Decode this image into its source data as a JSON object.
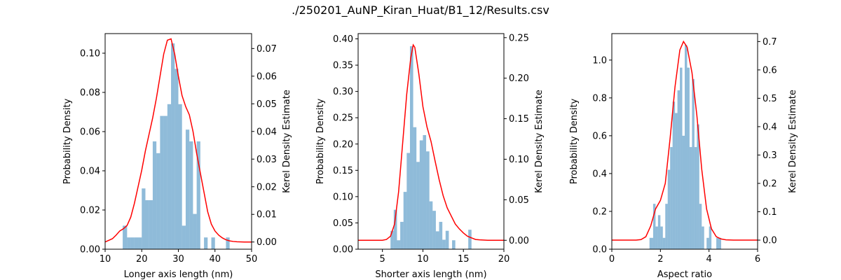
{
  "figure": {
    "title": "./250201_AuNP_Kiran_Huat/B1_12/Results.csv",
    "colors": {
      "hist": "#1f77b4",
      "kde": "#ff0000",
      "axes": "#000000"
    }
  },
  "chart_data": [
    {
      "type": "histogram+line",
      "xlabel": "Longer axis length (nm)",
      "ylabel": "Probability Density",
      "ylabel2": "Kerel Density Estimate",
      "xlim": [
        10,
        50
      ],
      "ylim": [
        0,
        0.11
      ],
      "y2lim": [
        -0.0026,
        0.0754
      ],
      "xticks": [
        10,
        20,
        30,
        40,
        50
      ],
      "yticks": [
        0.0,
        0.02,
        0.04,
        0.06,
        0.08,
        0.1
      ],
      "y2ticks": [
        0.0,
        0.01,
        0.02,
        0.03,
        0.04,
        0.05,
        0.06,
        0.07
      ],
      "ytick_labels": [
        "0.00",
        "0.02",
        "0.04",
        "0.06",
        "0.08",
        "0.10"
      ],
      "y2tick_labels": [
        "0.00",
        "0.01",
        "0.02",
        "0.03",
        "0.04",
        "0.05",
        "0.06",
        "0.07"
      ],
      "bins": {
        "edges": [
          14.8,
          16.0,
          17.0,
          18.0,
          19.0,
          20.0,
          21.0,
          22.0,
          23.0,
          24.0,
          25.0,
          26.0,
          27.0,
          28.0,
          29.0,
          30.0,
          31.0,
          32.0,
          33.0,
          34.0,
          35.0,
          36.0,
          37.0,
          38.0,
          39.0,
          40.0,
          41.0,
          42.0,
          43.0,
          44.0
        ],
        "values": [
          0.012,
          0.006,
          0.006,
          0.006,
          0.006,
          0.031,
          0.025,
          0.025,
          0.055,
          0.049,
          0.068,
          0.068,
          0.074,
          0.105,
          0.092,
          0.074,
          0.012,
          0.061,
          0.055,
          0.018,
          0.055,
          0.0,
          0.006,
          0.0,
          0.006,
          0.0,
          0.0,
          0.0,
          0.006
        ]
      },
      "kde": {
        "x": [
          10,
          12,
          13,
          14,
          15,
          16,
          17,
          18,
          19,
          20,
          21,
          22,
          23,
          24,
          25,
          26,
          27,
          28,
          29,
          30,
          31,
          32,
          33,
          34,
          35,
          36,
          37,
          38,
          39,
          40,
          41,
          42,
          43,
          44,
          45,
          46,
          48,
          50
        ],
        "y": [
          0.0,
          0.0012,
          0.0025,
          0.004,
          0.0048,
          0.006,
          0.009,
          0.014,
          0.02,
          0.026,
          0.033,
          0.039,
          0.045,
          0.052,
          0.06,
          0.068,
          0.073,
          0.0735,
          0.068,
          0.06,
          0.053,
          0.049,
          0.046,
          0.04,
          0.032,
          0.025,
          0.018,
          0.011,
          0.0065,
          0.004,
          0.0025,
          0.0015,
          0.0008,
          0.0004,
          0.0002,
          0.0001,
          0.0,
          0.0
        ]
      }
    },
    {
      "type": "histogram+line",
      "xlabel": "Shorter axis length (nm)",
      "ylabel": "Probability Density",
      "ylabel2": "Kerel Density Estimate",
      "xlim": [
        2,
        20
      ],
      "ylim": [
        0,
        0.41
      ],
      "y2lim": [
        -0.011,
        0.255
      ],
      "xticks": [
        5,
        10,
        15,
        20
      ],
      "yticks": [
        0.0,
        0.05,
        0.1,
        0.15,
        0.2,
        0.25,
        0.3,
        0.35,
        0.4
      ],
      "y2ticks": [
        0.0,
        0.05,
        0.1,
        0.15,
        0.2,
        0.25
      ],
      "ytick_labels": [
        "0.00",
        "0.05",
        "0.10",
        "0.15",
        "0.20",
        "0.25",
        "0.30",
        "0.35",
        "0.40"
      ],
      "y2tick_labels": [
        "0.00",
        "0.05",
        "0.10",
        "0.15",
        "0.20",
        "0.25"
      ],
      "bins": {
        "edges": [
          6.0,
          6.4,
          6.8,
          7.2,
          7.6,
          8.0,
          8.4,
          8.8,
          9.2,
          9.6,
          10.0,
          10.4,
          10.8,
          11.2,
          11.6,
          12.0,
          12.4,
          12.8,
          13.2,
          13.6,
          14.0,
          14.4,
          14.8,
          15.2,
          15.6,
          16.0
        ],
        "values": [
          0.035,
          0.075,
          0.017,
          0.052,
          0.109,
          0.183,
          0.386,
          0.232,
          0.166,
          0.207,
          0.217,
          0.186,
          0.091,
          0.073,
          0.034,
          0.052,
          0.018,
          0.035,
          0.0,
          0.017,
          0.0,
          0.0,
          0.0,
          0.0,
          0.037
        ]
      },
      "kde": {
        "x": [
          2,
          5,
          5.5,
          6,
          6.5,
          7,
          7.5,
          8,
          8.5,
          8.8,
          9,
          9.5,
          10,
          10.5,
          11,
          11.5,
          12,
          12.5,
          13,
          13.5,
          14,
          14.5,
          15,
          15.5,
          16,
          16.5,
          17,
          18,
          20
        ],
        "y": [
          0.0,
          0.0,
          0.001,
          0.005,
          0.02,
          0.06,
          0.12,
          0.18,
          0.225,
          0.241,
          0.238,
          0.205,
          0.165,
          0.14,
          0.122,
          0.098,
          0.075,
          0.055,
          0.04,
          0.03,
          0.02,
          0.014,
          0.009,
          0.005,
          0.003,
          0.001,
          0.0005,
          0.0,
          0.0
        ]
      }
    },
    {
      "type": "histogram+line",
      "xlabel": "Aspect ratio",
      "ylabel": "Probability Density",
      "ylabel2": "Kerel Density Estimate",
      "xlim": [
        0,
        6
      ],
      "ylim": [
        0,
        1.14
      ],
      "y2lim": [
        -0.032,
        0.728
      ],
      "xticks": [
        0,
        2,
        4,
        6
      ],
      "yticks": [
        0.0,
        0.2,
        0.4,
        0.6,
        0.8,
        1.0
      ],
      "y2ticks": [
        0.0,
        0.1,
        0.2,
        0.3,
        0.4,
        0.5,
        0.6,
        0.7
      ],
      "ytick_labels": [
        "0.0",
        "0.2",
        "0.4",
        "0.6",
        "0.8",
        "1.0"
      ],
      "y2tick_labels": [
        "0.0",
        "0.1",
        "0.2",
        "0.3",
        "0.4",
        "0.5",
        "0.6",
        "0.7"
      ],
      "bins": {
        "edges": [
          1.55,
          1.7,
          1.8,
          1.9,
          2.0,
          2.1,
          2.2,
          2.3,
          2.4,
          2.5,
          2.6,
          2.7,
          2.8,
          2.9,
          3.0,
          3.1,
          3.2,
          3.3,
          3.4,
          3.5,
          3.6,
          3.7,
          3.8,
          3.9,
          4.0,
          4.1,
          4.2,
          4.3,
          4.4,
          4.5
        ],
        "values": [
          0.06,
          0.24,
          0.12,
          0.18,
          0.12,
          0.06,
          0.24,
          0.42,
          0.54,
          0.78,
          0.72,
          0.84,
          0.96,
          0.6,
          1.08,
          0.96,
          0.54,
          0.9,
          0.54,
          0.66,
          0.24,
          0.12,
          0.0,
          0.06,
          0.12,
          0.0,
          0.0,
          0.06,
          0.06
        ]
      },
      "kde": {
        "x": [
          0,
          1.0,
          1.2,
          1.4,
          1.6,
          1.8,
          2.0,
          2.2,
          2.4,
          2.6,
          2.8,
          2.95,
          3.1,
          3.3,
          3.5,
          3.7,
          3.9,
          4.1,
          4.3,
          4.5,
          4.7,
          5.0,
          6.0
        ],
        "y": [
          0.0,
          0.0,
          0.002,
          0.012,
          0.05,
          0.11,
          0.14,
          0.2,
          0.36,
          0.54,
          0.67,
          0.7,
          0.68,
          0.59,
          0.44,
          0.25,
          0.11,
          0.04,
          0.012,
          0.004,
          0.001,
          0.0,
          0.0
        ]
      }
    }
  ]
}
